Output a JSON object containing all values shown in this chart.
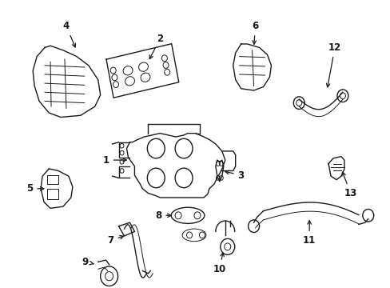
{
  "background_color": "#ffffff",
  "line_color": "#1a1a1a",
  "label_fontsize": 8.5,
  "fig_width": 4.89,
  "fig_height": 3.6,
  "dpi": 100
}
